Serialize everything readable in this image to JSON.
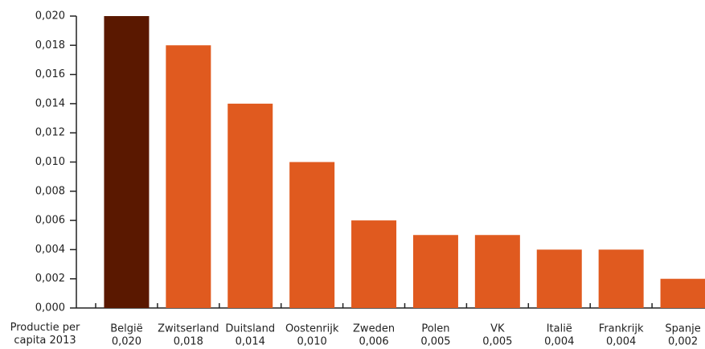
{
  "chart_data": {
    "type": "bar",
    "x_label": "Productie per capita 2013",
    "categories": [
      "België",
      "Zwitserland",
      "Duitsland",
      "Oostenrijk",
      "Zweden",
      "Polen",
      "VK",
      "Italië",
      "Frankrijk",
      "Spanje"
    ],
    "values": [
      0.02,
      0.018,
      0.014,
      0.01,
      0.006,
      0.005,
      0.005,
      0.004,
      0.004,
      0.002
    ],
    "value_labels": [
      "0,020",
      "0,018",
      "0,014",
      "0,010",
      "0,006",
      "0,005",
      "0,005",
      "0,004",
      "0,004",
      "0,002"
    ],
    "colors": [
      "#5a1800",
      "#e05a1f",
      "#e05a1f",
      "#e05a1f",
      "#e05a1f",
      "#e05a1f",
      "#e05a1f",
      "#e05a1f",
      "#e05a1f",
      "#e05a1f"
    ],
    "ylim": [
      0,
      0.02
    ],
    "yticks": [
      {
        "value": 0,
        "label": "0,000"
      },
      {
        "value": 0.002,
        "label": "0,002"
      },
      {
        "value": 0.004,
        "label": "0,004"
      },
      {
        "value": 0.006,
        "label": "0,006"
      },
      {
        "value": 0.008,
        "label": "0,008"
      },
      {
        "value": 0.01,
        "label": "0,010"
      },
      {
        "value": 0.012,
        "label": "0,012"
      },
      {
        "value": 0.014,
        "label": "0,014"
      },
      {
        "value": 0.016,
        "label": "0,016"
      },
      {
        "value": 0.018,
        "label": "0,018"
      },
      {
        "value": 0.02,
        "label": "0,020"
      }
    ]
  }
}
